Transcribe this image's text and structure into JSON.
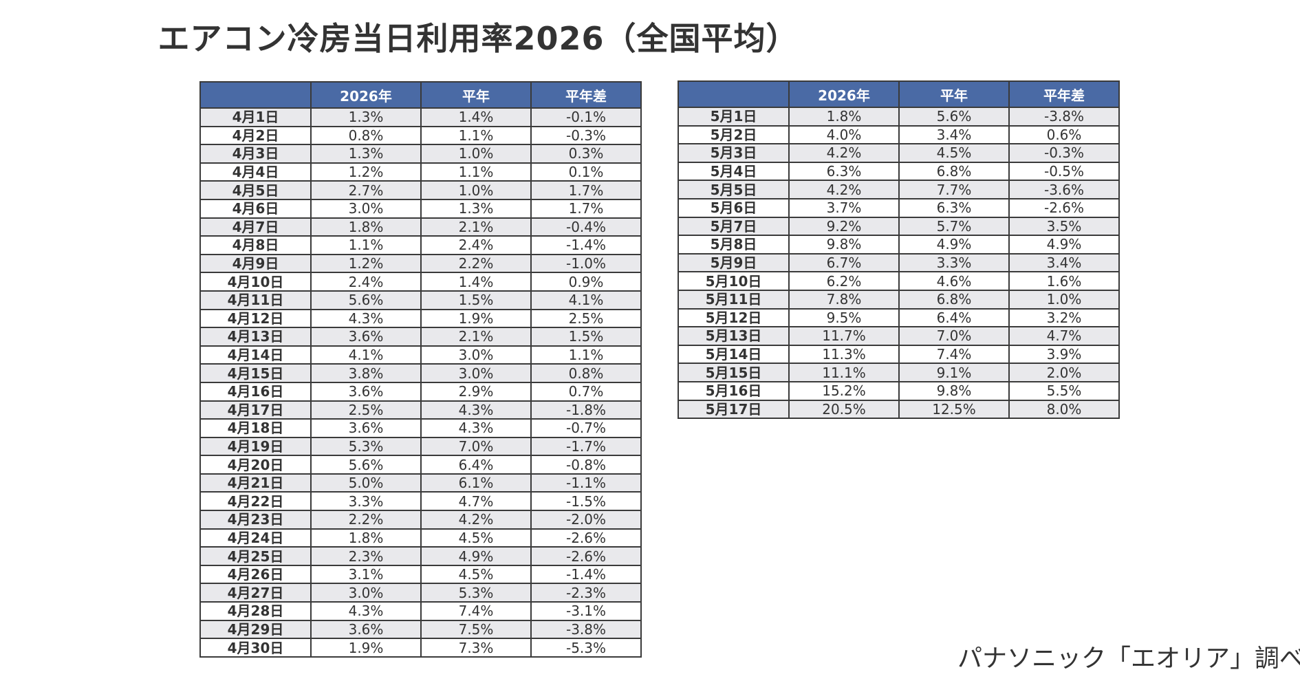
{
  "title": "エアコン冷房当日利用率2026（全国平均）",
  "columns": [
    "",
    "2026年",
    "平年",
    "平年差"
  ],
  "april": [
    [
      "4月1日",
      "1.3%",
      "1.4%",
      "-0.1%"
    ],
    [
      "4月2日",
      "0.8%",
      "1.1%",
      "-0.3%"
    ],
    [
      "4月3日",
      "1.3%",
      "1.0%",
      "0.3%"
    ],
    [
      "4月4日",
      "1.2%",
      "1.1%",
      "0.1%"
    ],
    [
      "4月5日",
      "2.7%",
      "1.0%",
      "1.7%"
    ],
    [
      "4月6日",
      "3.0%",
      "1.3%",
      "1.7%"
    ],
    [
      "4月7日",
      "1.8%",
      "2.1%",
      "-0.4%"
    ],
    [
      "4月8日",
      "1.1%",
      "2.4%",
      "-1.4%"
    ],
    [
      "4月9日",
      "1.2%",
      "2.2%",
      "-1.0%"
    ],
    [
      "4月10日",
      "2.4%",
      "1.4%",
      "0.9%"
    ],
    [
      "4月11日",
      "5.6%",
      "1.5%",
      "4.1%"
    ],
    [
      "4月12日",
      "4.3%",
      "1.9%",
      "2.5%"
    ],
    [
      "4月13日",
      "3.6%",
      "2.1%",
      "1.5%"
    ],
    [
      "4月14日",
      "4.1%",
      "3.0%",
      "1.1%"
    ],
    [
      "4月15日",
      "3.8%",
      "3.0%",
      "0.8%"
    ],
    [
      "4月16日",
      "3.6%",
      "2.9%",
      "0.7%"
    ],
    [
      "4月17日",
      "2.5%",
      "4.3%",
      "-1.8%"
    ],
    [
      "4月18日",
      "3.6%",
      "4.3%",
      "-0.7%"
    ],
    [
      "4月19日",
      "5.3%",
      "7.0%",
      "-1.7%"
    ],
    [
      "4月20日",
      "5.6%",
      "6.4%",
      "-0.8%"
    ],
    [
      "4月21日",
      "5.0%",
      "6.1%",
      "-1.1%"
    ],
    [
      "4月22日",
      "3.3%",
      "4.7%",
      "-1.5%"
    ],
    [
      "4月23日",
      "2.2%",
      "4.2%",
      "-2.0%"
    ],
    [
      "4月24日",
      "1.8%",
      "4.5%",
      "-2.6%"
    ],
    [
      "4月25日",
      "2.3%",
      "4.9%",
      "-2.6%"
    ],
    [
      "4月26日",
      "3.1%",
      "4.5%",
      "-1.4%"
    ],
    [
      "4月27日",
      "3.0%",
      "5.3%",
      "-2.3%"
    ],
    [
      "4月28日",
      "4.3%",
      "7.4%",
      "-3.1%"
    ],
    [
      "4月29日",
      "3.6%",
      "7.5%",
      "-3.8%"
    ],
    [
      "4月30日",
      "1.9%",
      "7.3%",
      "-5.3%"
    ]
  ],
  "may": [
    [
      "5月1日",
      "1.8%",
      "5.6%",
      "-3.8%"
    ],
    [
      "5月2日",
      "4.0%",
      "3.4%",
      "0.6%"
    ],
    [
      "5月3日",
      "4.2%",
      "4.5%",
      "-0.3%"
    ],
    [
      "5月4日",
      "6.3%",
      "6.8%",
      "-0.5%"
    ],
    [
      "5月5日",
      "4.2%",
      "7.7%",
      "-3.6%"
    ],
    [
      "5月6日",
      "3.7%",
      "6.3%",
      "-2.6%"
    ],
    [
      "5月7日",
      "9.2%",
      "5.7%",
      "3.5%"
    ],
    [
      "5月8日",
      "9.8%",
      "4.9%",
      "4.9%"
    ],
    [
      "5月9日",
      "6.7%",
      "3.3%",
      "3.4%"
    ],
    [
      "5月10日",
      "6.2%",
      "4.6%",
      "1.6%"
    ],
    [
      "5月11日",
      "7.8%",
      "6.8%",
      "1.0%"
    ],
    [
      "5月12日",
      "9.5%",
      "6.4%",
      "3.2%"
    ],
    [
      "5月13日",
      "11.7%",
      "7.0%",
      "4.7%"
    ],
    [
      "5月14日",
      "11.3%",
      "7.4%",
      "3.9%"
    ],
    [
      "5月15日",
      "11.1%",
      "9.1%",
      "2.0%"
    ],
    [
      "5月16日",
      "15.2%",
      "9.8%",
      "5.5%"
    ],
    [
      "5月17日",
      "20.5%",
      "12.5%",
      "8.0%"
    ]
  ],
  "source": "パナソニック「エオリア」調べ",
  "colors": {
    "header_bg": "#4a6aa5",
    "stripe": "#e9e9ec",
    "text": "#333333"
  }
}
